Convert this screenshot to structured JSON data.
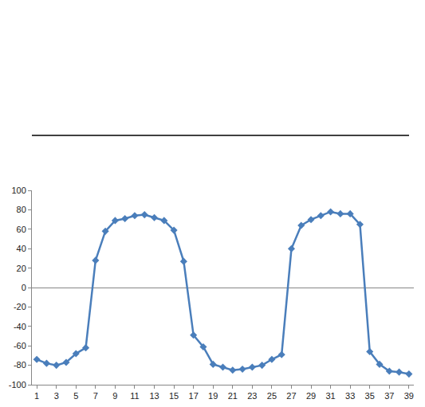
{
  "chart_data": {
    "type": "line",
    "x": [
      1,
      2,
      3,
      4,
      5,
      6,
      7,
      8,
      9,
      10,
      11,
      12,
      13,
      14,
      15,
      16,
      17,
      18,
      19,
      20,
      21,
      22,
      23,
      24,
      25,
      26,
      27,
      28,
      29,
      30,
      31,
      32,
      33,
      34,
      35,
      36,
      37,
      38,
      39
    ],
    "values": [
      -74,
      -78,
      -80,
      -77,
      -68,
      -62,
      28,
      58,
      69,
      71,
      74,
      75,
      72,
      69,
      59,
      27,
      -49,
      -61,
      -79,
      -82,
      -85,
      -84,
      -82,
      -80,
      -74,
      -69,
      40,
      64,
      70,
      74,
      78,
      76,
      76,
      65,
      -66,
      -79,
      -86,
      -87,
      -89
    ],
    "color": "#4a7ebb",
    "marker": "diamond",
    "xlim": [
      0.5,
      39.5
    ],
    "xticks": [
      1,
      3,
      5,
      7,
      9,
      11,
      13,
      15,
      17,
      19,
      21,
      23,
      25,
      27,
      29,
      31,
      33,
      35,
      37,
      39
    ],
    "ylim": [
      -100,
      100
    ],
    "yticks": [
      -100,
      -80,
      -60,
      -40,
      -20,
      0,
      20,
      40,
      60,
      80,
      100
    ],
    "grid": false
  }
}
